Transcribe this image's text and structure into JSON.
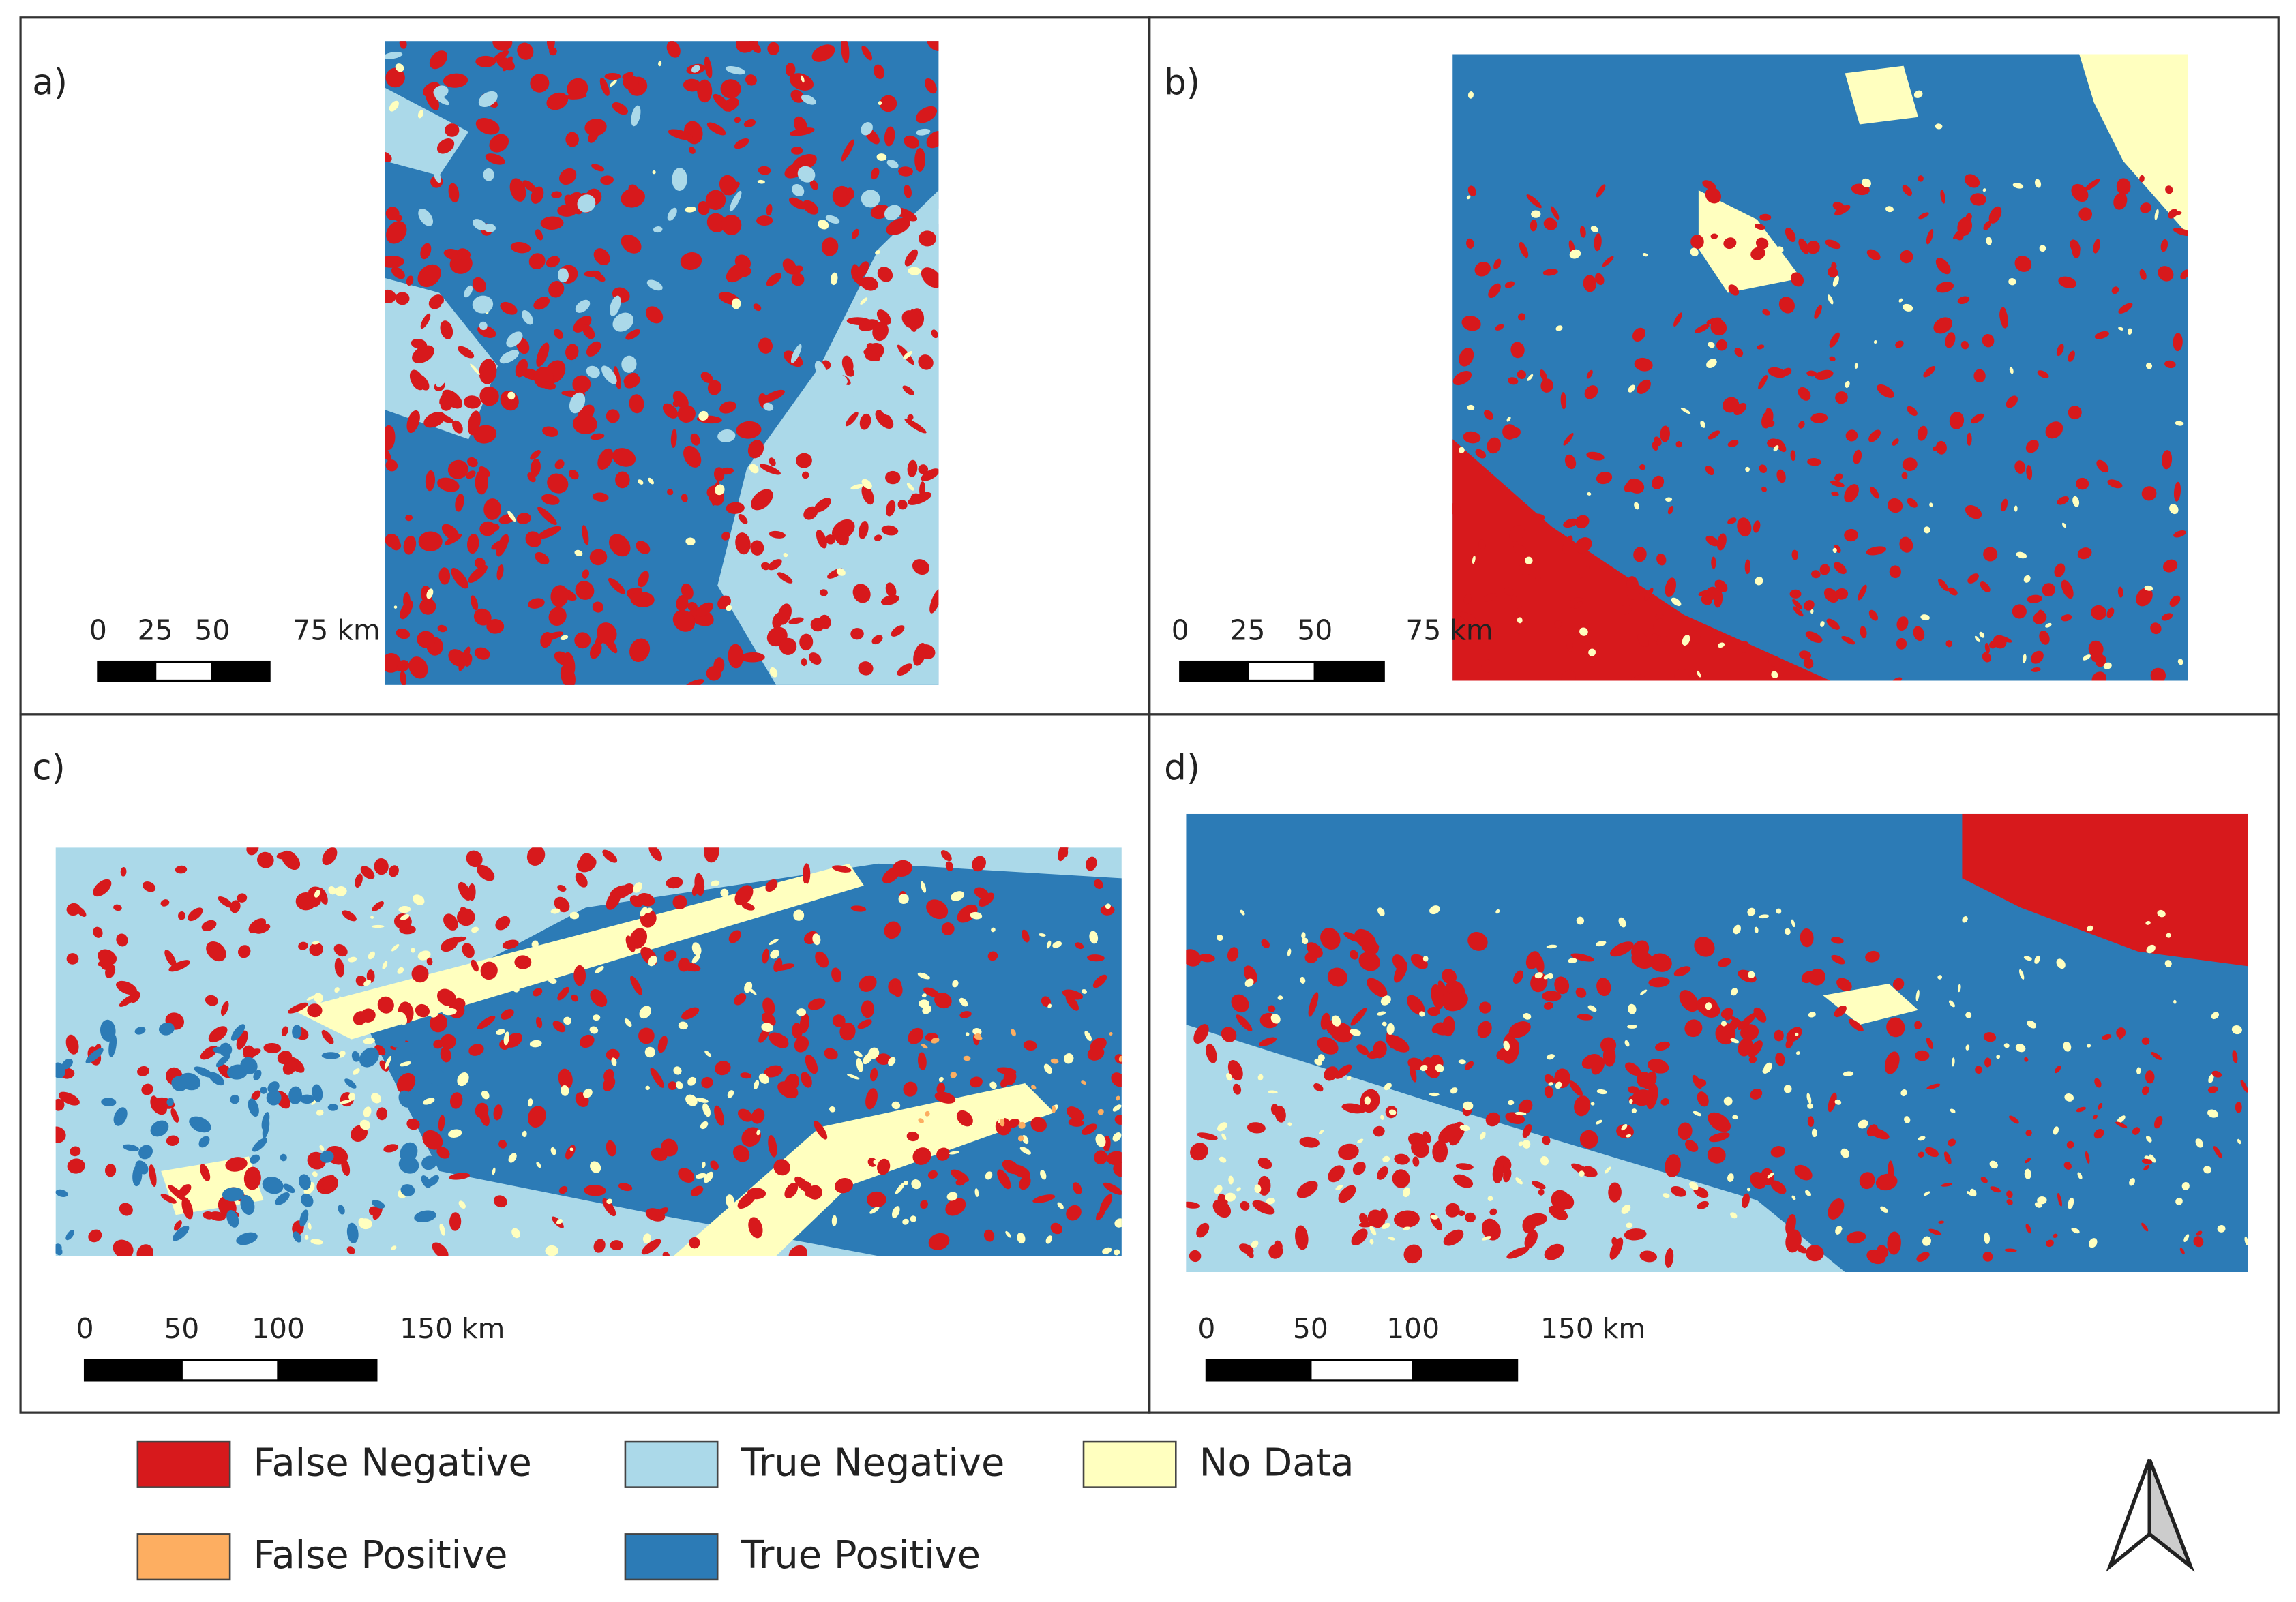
{
  "panels": [
    {
      "label": "a)",
      "scale_bar": {
        "labels": [
          "0",
          "25",
          "50",
          "75 km"
        ]
      }
    },
    {
      "label": "b)",
      "scale_bar": {
        "labels": [
          "0",
          "25",
          "50",
          "75 km"
        ]
      }
    },
    {
      "label": "c)",
      "scale_bar": {
        "labels": [
          "0",
          "50",
          "100",
          "150 km"
        ]
      }
    },
    {
      "label": "d)",
      "scale_bar": {
        "labels": [
          "0",
          "50",
          "100",
          "150 km"
        ]
      }
    }
  ],
  "legend": {
    "items": [
      {
        "label": "False Negative",
        "color": "#d7191c"
      },
      {
        "label": "True Negative",
        "color": "#abd9e9"
      },
      {
        "label": "No Data",
        "color": "#ffffbf"
      },
      {
        "label": "False Positive",
        "color": "#fdae61"
      },
      {
        "label": "True Positive",
        "color": "#2c7bb6"
      }
    ]
  }
}
